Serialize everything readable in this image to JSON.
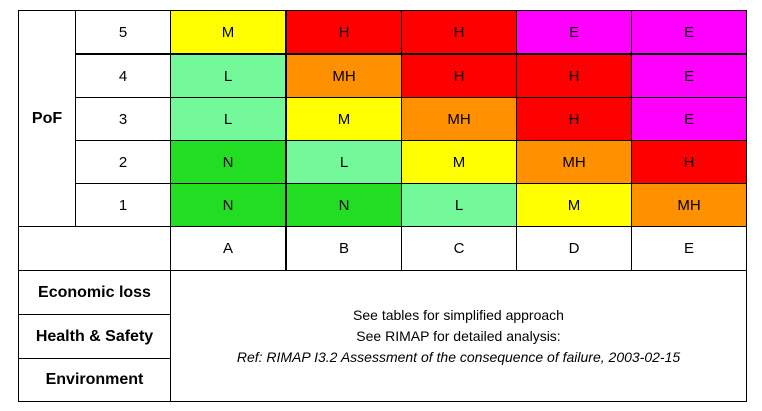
{
  "pof_label": "PoF",
  "pof_levels": [
    "5",
    "4",
    "3",
    "2",
    "1"
  ],
  "cof_categories": [
    "A",
    "B",
    "C",
    "D",
    "E"
  ],
  "matrix": [
    [
      "M",
      "H",
      "H",
      "E",
      "E"
    ],
    [
      "L",
      "MH",
      "H",
      "H",
      "E"
    ],
    [
      "L",
      "M",
      "MH",
      "H",
      "E"
    ],
    [
      "N",
      "L",
      "M",
      "MH",
      "H"
    ],
    [
      "N",
      "N",
      "L",
      "M",
      "MH"
    ]
  ],
  "risk_colors": {
    "N": "#22dd22",
    "L": "#73f99a",
    "M": "#ffff00",
    "MH": "#ff9000",
    "H": "#ff0000",
    "E": "#ff00ff"
  },
  "consequence_types": [
    "Economic loss",
    "Health & Safety",
    "Environment"
  ],
  "note": {
    "line1": "See tables for simplified approach",
    "line2": "See RIMAP for detailed analysis:",
    "ref": "Ref: RIMAP I3.2 Assessment of the consequence of failure, 2003-02-15"
  }
}
